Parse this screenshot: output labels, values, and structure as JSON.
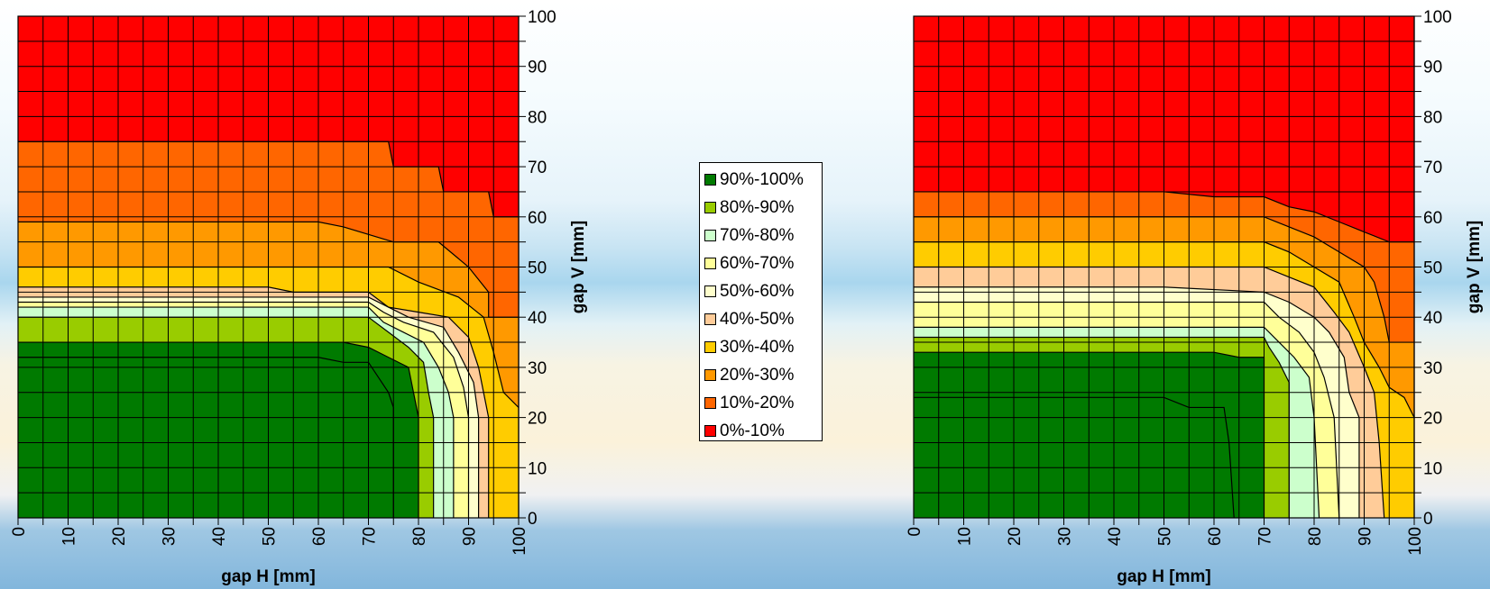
{
  "chart_data": [
    {
      "type": "contour",
      "xlabel": "gap H [mm]",
      "ylabel": "gap V [mm]",
      "xlim": [
        0,
        100
      ],
      "ylim": [
        0,
        100
      ],
      "x_ticks": [
        0,
        10,
        20,
        30,
        40,
        50,
        60,
        70,
        80,
        90,
        100
      ],
      "y_ticks": [
        0,
        10,
        20,
        30,
        40,
        50,
        60,
        70,
        80,
        90,
        100
      ],
      "grid": true,
      "grid_step": 5,
      "y_axis_side": "right",
      "contours": [
        {
          "band": "0%-10%",
          "boundary": [
            [
              0,
              75
            ],
            [
              74,
              75
            ],
            [
              75,
              70
            ],
            [
              84,
              70
            ],
            [
              85,
              65
            ],
            [
              94,
              65
            ],
            [
              95,
              60
            ],
            [
              100,
              60
            ]
          ]
        },
        {
          "band": "10%-20%",
          "boundary": [
            [
              0,
              59
            ],
            [
              60,
              59
            ],
            [
              65,
              58
            ],
            [
              75,
              55
            ],
            [
              84,
              55
            ],
            [
              90,
              50
            ],
            [
              94,
              45
            ],
            [
              94,
              40
            ],
            [
              100,
              40
            ]
          ]
        },
        {
          "band": "20%-30%",
          "boundary": [
            [
              0,
              50
            ],
            [
              74,
              50
            ],
            [
              80,
              47
            ],
            [
              88,
              44
            ],
            [
              93,
              40
            ],
            [
              95,
              33
            ],
            [
              97,
              25
            ],
            [
              100,
              22
            ]
          ]
        },
        {
          "band": "30%-40%",
          "boundary": [
            [
              0,
              46
            ],
            [
              50,
              46
            ],
            [
              55,
              45
            ],
            [
              70,
              45
            ],
            [
              74,
              42
            ],
            [
              80,
              41
            ],
            [
              86,
              40
            ],
            [
              90,
              36
            ],
            [
              92,
              30
            ],
            [
              94,
              20
            ],
            [
              94,
              0
            ]
          ]
        },
        {
          "band": "40%-50%",
          "boundary": [
            [
              0,
              44
            ],
            [
              70,
              44
            ],
            [
              74,
              42
            ],
            [
              78,
              40
            ],
            [
              85,
              38
            ],
            [
              88,
              33
            ],
            [
              91,
              27
            ],
            [
              92,
              20
            ],
            [
              92,
              0
            ]
          ]
        },
        {
          "band": "50%-60%",
          "boundary": [
            [
              0,
              43
            ],
            [
              70,
              43
            ],
            [
              73,
              41
            ],
            [
              77,
              39
            ],
            [
              83,
              37
            ],
            [
              87,
              32
            ],
            [
              89,
              26
            ],
            [
              90,
              20
            ],
            [
              90,
              0
            ]
          ]
        },
        {
          "band": "60%-70%",
          "boundary": [
            [
              0,
              42
            ],
            [
              70,
              42
            ],
            [
              73,
              39
            ],
            [
              77,
              37
            ],
            [
              81,
              35
            ],
            [
              84,
              30
            ],
            [
              86,
              25
            ],
            [
              87,
              20
            ],
            [
              87,
              0
            ]
          ]
        },
        {
          "band": "70%-80%",
          "boundary": [
            [
              0,
              40
            ],
            [
              70,
              40
            ],
            [
              74,
              37
            ],
            [
              78,
              34
            ],
            [
              81,
              31
            ],
            [
              82,
              25
            ],
            [
              83,
              20
            ],
            [
              83,
              0
            ]
          ]
        },
        {
          "band": "80%-90%",
          "boundary": [
            [
              0,
              35
            ],
            [
              65,
              35
            ],
            [
              70,
              34
            ],
            [
              74,
              32
            ],
            [
              78,
              30
            ],
            [
              79,
              25
            ],
            [
              80,
              20
            ],
            [
              80,
              0
            ]
          ]
        },
        {
          "band": "90%-100%",
          "boundary": [
            [
              0,
              32
            ],
            [
              60,
              32
            ],
            [
              65,
              31
            ],
            [
              70,
              31
            ],
            [
              72,
              28
            ],
            [
              74,
              25
            ],
            [
              75,
              22
            ],
            [
              75,
              0
            ]
          ]
        }
      ]
    },
    {
      "type": "contour",
      "xlabel": "gap H [mm]",
      "ylabel": "gap V [mm]",
      "xlim": [
        0,
        100
      ],
      "ylim": [
        0,
        100
      ],
      "x_ticks": [
        0,
        10,
        20,
        30,
        40,
        50,
        60,
        70,
        80,
        90,
        100
      ],
      "y_ticks": [
        0,
        10,
        20,
        30,
        40,
        50,
        60,
        70,
        80,
        90,
        100
      ],
      "grid": true,
      "grid_step": 5,
      "y_axis_side": "right",
      "contours": [
        {
          "band": "0%-10%",
          "boundary": [
            [
              0,
              65
            ],
            [
              50,
              65
            ],
            [
              60,
              64
            ],
            [
              70,
              64
            ],
            [
              75,
              62
            ],
            [
              80,
              61
            ],
            [
              85,
              59
            ],
            [
              90,
              57
            ],
            [
              95,
              55
            ],
            [
              100,
              55
            ]
          ]
        },
        {
          "band": "10%-20%",
          "boundary": [
            [
              0,
              60
            ],
            [
              70,
              60
            ],
            [
              75,
              58
            ],
            [
              80,
              56
            ],
            [
              85,
              53
            ],
            [
              90,
              50
            ],
            [
              92,
              47
            ],
            [
              94,
              40
            ],
            [
              95,
              35
            ],
            [
              100,
              35
            ]
          ]
        },
        {
          "band": "20%-30%",
          "boundary": [
            [
              0,
              55
            ],
            [
              70,
              55
            ],
            [
              75,
              53
            ],
            [
              80,
              50
            ],
            [
              85,
              47
            ],
            [
              88,
              40
            ],
            [
              90,
              35
            ],
            [
              93,
              30
            ],
            [
              95,
              26
            ],
            [
              98,
              24
            ],
            [
              100,
              20
            ]
          ]
        },
        {
          "band": "30%-40%",
          "boundary": [
            [
              0,
              50
            ],
            [
              70,
              50
            ],
            [
              75,
              48
            ],
            [
              80,
              46
            ],
            [
              84,
              41
            ],
            [
              87,
              37
            ],
            [
              90,
              30
            ],
            [
              92,
              25
            ],
            [
              93,
              15
            ],
            [
              94,
              0
            ]
          ]
        },
        {
          "band": "40%-50%",
          "boundary": [
            [
              0,
              46
            ],
            [
              50,
              46
            ],
            [
              70,
              45
            ],
            [
              75,
              43
            ],
            [
              80,
              40
            ],
            [
              83,
              37
            ],
            [
              86,
              32
            ],
            [
              87,
              25
            ],
            [
              89,
              20
            ],
            [
              89,
              0
            ]
          ]
        },
        {
          "band": "50%-60%",
          "boundary": [
            [
              0,
              43
            ],
            [
              70,
              43
            ],
            [
              73,
              40
            ],
            [
              77,
              37
            ],
            [
              80,
              33
            ],
            [
              82,
              28
            ],
            [
              84,
              20
            ],
            [
              85,
              0
            ]
          ]
        },
        {
          "band": "60%-70%",
          "boundary": [
            [
              0,
              38
            ],
            [
              70,
              38
            ],
            [
              73,
              35
            ],
            [
              76,
              32
            ],
            [
              79,
              28
            ],
            [
              80,
              20
            ],
            [
              81,
              0
            ]
          ]
        },
        {
          "band": "70%-80%",
          "boundary": [
            [
              0,
              36
            ],
            [
              70,
              36
            ],
            [
              71,
              34
            ],
            [
              73,
              31
            ],
            [
              75,
              27
            ],
            [
              75,
              0
            ]
          ]
        },
        {
          "band": "80%-90%",
          "boundary": [
            [
              0,
              33
            ],
            [
              60,
              33
            ],
            [
              65,
              32
            ],
            [
              70,
              32
            ],
            [
              70,
              0
            ]
          ]
        },
        {
          "band": "90%-100%",
          "boundary": [
            [
              0,
              24
            ],
            [
              50,
              24
            ],
            [
              55,
              22
            ],
            [
              62,
              22
            ],
            [
              63,
              15
            ],
            [
              64,
              0
            ]
          ]
        }
      ]
    }
  ],
  "legend": {
    "placement": "center",
    "items": [
      {
        "label": "90%-100%",
        "color": "#007a00"
      },
      {
        "label": "80%-90%",
        "color": "#99cc00"
      },
      {
        "label": "70%-80%",
        "color": "#ccffcc"
      },
      {
        "label": "60%-70%",
        "color": "#ffff99"
      },
      {
        "label": "50%-60%",
        "color": "#ffffcc"
      },
      {
        "label": "40%-50%",
        "color": "#ffcc99"
      },
      {
        "label": "30%-40%",
        "color": "#ffcc00"
      },
      {
        "label": "20%-30%",
        "color": "#ff9900"
      },
      {
        "label": "10%-20%",
        "color": "#ff6600"
      },
      {
        "label": "0%-10%",
        "color": "#ff0000"
      }
    ]
  }
}
